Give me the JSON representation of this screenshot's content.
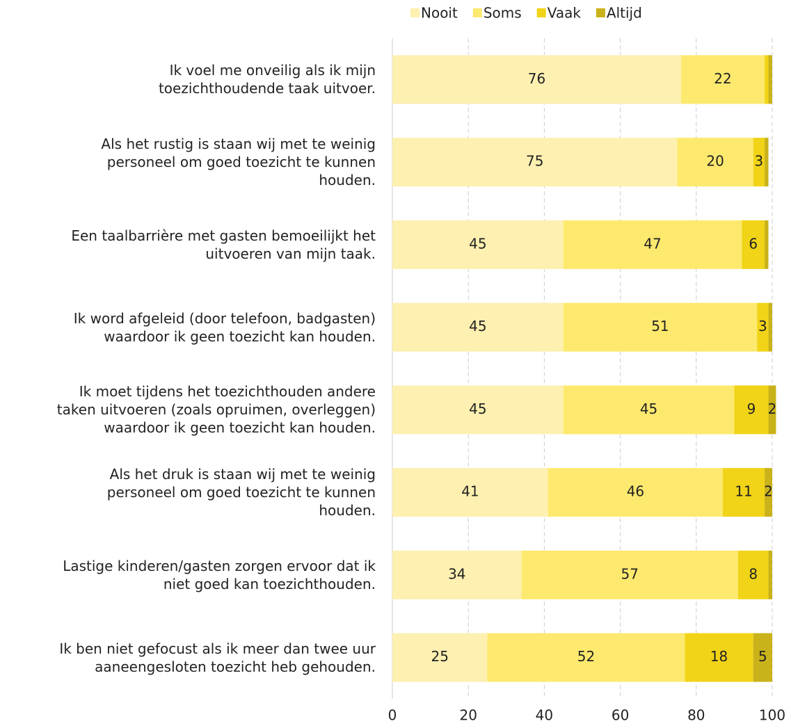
{
  "chart_data": {
    "type": "stacked-barh",
    "categories": [
      "Ik voel me onveilig als ik mijn\ntoezichthoudende taak uitvoer.",
      "Als het rustig is staan wij met te weinig\npersoneel om goed toezicht te kunnen\nhouden.",
      "Een taalbarrière met gasten bemoeilijkt het\nuitvoeren van mijn taak.",
      "Ik word afgeleid (door telefoon, badgasten)\nwaardoor ik geen toezicht kan houden.",
      "Ik moet tijdens het toezichthouden andere\ntaken uitvoeren (zoals opruimen, overleggen)\nwaardoor ik geen toezicht kan houden.",
      "Als het druk is staan wij met te weinig\npersoneel om goed toezicht te kunnen\nhouden.",
      "Lastige kinderen/gasten zorgen ervoor dat ik\nniet goed kan toezichthouden.",
      "Ik ben niet gefocust als ik meer dan twee uur\naaneengesloten toezicht heb gehouden."
    ],
    "series": [
      {
        "name": "Nooit",
        "color": "#fdf0b0",
        "values": [
          76,
          75,
          45,
          45,
          45,
          41,
          34,
          25
        ]
      },
      {
        "name": "Soms",
        "color": "#fde96e",
        "values": [
          22,
          20,
          47,
          51,
          45,
          46,
          57,
          52
        ]
      },
      {
        "name": "Vaak",
        "color": "#f1d417",
        "values": [
          1,
          3,
          6,
          3,
          9,
          11,
          8,
          18
        ]
      },
      {
        "name": "Altijd",
        "color": "#c9b21a",
        "values": [
          1,
          1,
          1,
          1,
          2,
          2,
          1,
          5
        ]
      }
    ],
    "xlim": [
      0,
      100
    ],
    "xticks": [
      0,
      20,
      40,
      60,
      80,
      100
    ],
    "grid": true,
    "legend": "top"
  }
}
